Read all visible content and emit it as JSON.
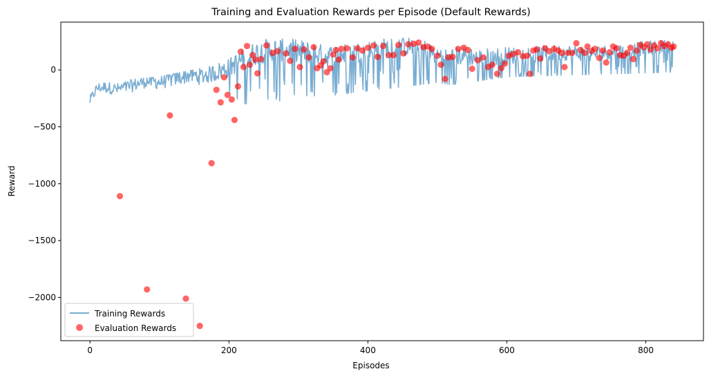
{
  "chart_data": {
    "type": "line+scatter",
    "title": "Training and Evaluation Rewards per Episode (Default Rewards)",
    "xlabel": "Episodes",
    "ylabel": "Reward",
    "xlim": [
      -42,
      883
    ],
    "ylim": [
      -2380,
      420
    ],
    "xticks": [
      0,
      200,
      400,
      600,
      800
    ],
    "xtick_labels": [
      "0",
      "200",
      "400",
      "600",
      "800"
    ],
    "yticks": [
      -2000,
      -1500,
      -1000,
      -500,
      0
    ],
    "ytick_labels": [
      "−2000",
      "−1500",
      "−1000",
      "−500",
      "0"
    ],
    "grid": false,
    "legend": {
      "placement": "lower-left",
      "entries": [
        {
          "label": "Training Rewards",
          "kind": "line",
          "color": "#1f77b4",
          "alpha": 0.6
        },
        {
          "label": "Evaluation Rewards",
          "kind": "marker",
          "color": "#ff0000",
          "alpha": 0.6
        }
      ]
    },
    "training": {
      "name": "Training Rewards",
      "color": "#1f77b4",
      "n_episodes": 840,
      "anchors": [
        [
          0,
          -280
        ],
        [
          10,
          -170
        ],
        [
          20,
          -160
        ],
        [
          40,
          -180
        ],
        [
          60,
          -150
        ],
        [
          80,
          -110
        ],
        [
          100,
          -120
        ],
        [
          120,
          -90
        ],
        [
          140,
          -60
        ],
        [
          160,
          -70
        ],
        [
          180,
          -40
        ],
        [
          200,
          0
        ],
        [
          220,
          80
        ],
        [
          240,
          130
        ],
        [
          260,
          160
        ],
        [
          300,
          150
        ],
        [
          320,
          130
        ],
        [
          340,
          100
        ],
        [
          380,
          130
        ],
        [
          400,
          150
        ],
        [
          420,
          170
        ],
        [
          460,
          190
        ],
        [
          480,
          170
        ],
        [
          500,
          110
        ],
        [
          520,
          100
        ],
        [
          540,
          110
        ],
        [
          560,
          90
        ],
        [
          580,
          100
        ],
        [
          600,
          110
        ],
        [
          640,
          120
        ],
        [
          680,
          140
        ],
        [
          720,
          130
        ],
        [
          760,
          150
        ],
        [
          800,
          180
        ],
        [
          840,
          200
        ]
      ],
      "spread": [
        [
          0,
          70
        ],
        [
          200,
          130
        ],
        [
          240,
          160
        ],
        [
          840,
          90
        ]
      ],
      "upper": [
        [
          0,
          -120
        ],
        [
          100,
          -60
        ],
        [
          180,
          40
        ],
        [
          240,
          270
        ],
        [
          500,
          280
        ],
        [
          520,
          210
        ],
        [
          840,
          270
        ]
      ],
      "lower": [
        [
          0,
          -340
        ],
        [
          100,
          -260
        ],
        [
          160,
          -280
        ],
        [
          230,
          -300
        ],
        [
          260,
          -290
        ],
        [
          500,
          -110
        ],
        [
          520,
          -130
        ],
        [
          600,
          -60
        ],
        [
          840,
          -20
        ]
      ]
    },
    "evaluation": {
      "name": "Evaluation Rewards",
      "color": "#ff0000",
      "points": [
        [
          43,
          -1110
        ],
        [
          82,
          -1930
        ],
        [
          115,
          -400
        ],
        [
          138,
          -2010
        ],
        [
          158,
          -2250
        ],
        [
          175,
          -820
        ],
        [
          182,
          -175
        ],
        [
          188,
          -285
        ],
        [
          193,
          -65
        ],
        [
          198,
          -220
        ],
        [
          204,
          -260
        ],
        [
          208,
          -440
        ],
        [
          213,
          -145
        ],
        [
          217,
          160
        ],
        [
          221,
          25
        ],
        [
          226,
          210
        ],
        [
          230,
          45
        ],
        [
          234,
          130
        ],
        [
          238,
          90
        ],
        [
          241,
          -30
        ],
        [
          246,
          95
        ],
        [
          254,
          215
        ],
        [
          263,
          150
        ],
        [
          270,
          165
        ],
        [
          282,
          145
        ],
        [
          288,
          80
        ],
        [
          295,
          185
        ],
        [
          302,
          25
        ],
        [
          308,
          180
        ],
        [
          315,
          110
        ],
        [
          322,
          200
        ],
        [
          327,
          15
        ],
        [
          332,
          40
        ],
        [
          336,
          75
        ],
        [
          341,
          -20
        ],
        [
          346,
          15
        ],
        [
          350,
          135
        ],
        [
          354,
          175
        ],
        [
          358,
          90
        ],
        [
          362,
          185
        ],
        [
          370,
          190
        ],
        [
          378,
          110
        ],
        [
          385,
          190
        ],
        [
          392,
          170
        ],
        [
          400,
          195
        ],
        [
          408,
          215
        ],
        [
          414,
          115
        ],
        [
          422,
          210
        ],
        [
          430,
          130
        ],
        [
          437,
          130
        ],
        [
          444,
          220
        ],
        [
          451,
          145
        ],
        [
          458,
          225
        ],
        [
          466,
          230
        ],
        [
          473,
          240
        ],
        [
          480,
          200
        ],
        [
          486,
          205
        ],
        [
          492,
          185
        ],
        [
          500,
          125
        ],
        [
          505,
          45
        ],
        [
          511,
          -80
        ],
        [
          516,
          110
        ],
        [
          522,
          115
        ],
        [
          530,
          185
        ],
        [
          538,
          195
        ],
        [
          544,
          175
        ],
        [
          550,
          10
        ],
        [
          558,
          85
        ],
        [
          566,
          110
        ],
        [
          573,
          25
        ],
        [
          579,
          45
        ],
        [
          586,
          -35
        ],
        [
          592,
          15
        ],
        [
          597,
          55
        ],
        [
          603,
          125
        ],
        [
          609,
          140
        ],
        [
          616,
          155
        ],
        [
          623,
          120
        ],
        [
          629,
          125
        ],
        [
          633,
          -35
        ],
        [
          638,
          170
        ],
        [
          643,
          180
        ],
        [
          648,
          100
        ],
        [
          655,
          190
        ],
        [
          661,
          165
        ],
        [
          668,
          185
        ],
        [
          674,
          170
        ],
        [
          679,
          150
        ],
        [
          683,
          25
        ],
        [
          688,
          150
        ],
        [
          694,
          150
        ],
        [
          700,
          235
        ],
        [
          706,
          175
        ],
        [
          712,
          150
        ],
        [
          716,
          205
        ],
        [
          722,
          165
        ],
        [
          727,
          185
        ],
        [
          733,
          105
        ],
        [
          738,
          170
        ],
        [
          743,
          65
        ],
        [
          748,
          155
        ],
        [
          753,
          205
        ],
        [
          758,
          190
        ],
        [
          763,
          130
        ],
        [
          768,
          125
        ],
        [
          773,
          150
        ],
        [
          778,
          195
        ],
        [
          782,
          95
        ],
        [
          787,
          170
        ],
        [
          792,
          220
        ],
        [
          797,
          200
        ],
        [
          802,
          225
        ],
        [
          807,
          180
        ],
        [
          812,
          215
        ],
        [
          817,
          190
        ],
        [
          822,
          235
        ],
        [
          827,
          210
        ],
        [
          832,
          225
        ],
        [
          837,
          195
        ],
        [
          840,
          205
        ]
      ]
    }
  }
}
